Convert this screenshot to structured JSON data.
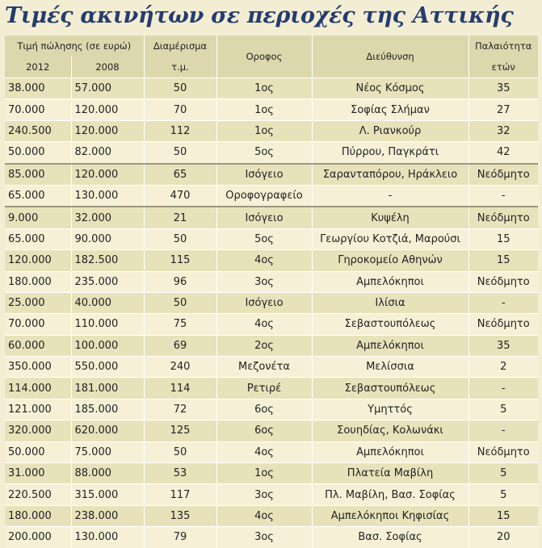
{
  "title": "Τιμές ακινήτων σε περιοχές της Αττικής",
  "headers": {
    "price": "Τιμή πώλησης (σε ευρώ)",
    "y2012": "2012",
    "y2008": "2008",
    "apartment": "Διαμέρισμα",
    "apartment_unit": "τ.μ.",
    "floor": "Οροφος",
    "address": "Διεύθυνση",
    "age": "Παλαιότητα",
    "age_unit": "ετών"
  },
  "rows": [
    [
      "38.000",
      "57.000",
      "50",
      "1ος",
      "Νέος Κόσμος",
      "35"
    ],
    [
      "70.000",
      "120.000",
      "70",
      "1ος",
      "Σοφίας Σλήμαν",
      "27"
    ],
    [
      "240.500",
      "120.000",
      "112",
      "1ος",
      "Λ. Ριανκούρ",
      "32"
    ],
    [
      "50.000",
      "82.000",
      "50",
      "5ος",
      "Πύρρου, Παγκράτι",
      "42"
    ],
    [
      "85.000",
      "120.000",
      "65",
      "Ισόγειο",
      "Σαρανταπόρου, Ηράκλειο",
      "Νεόδμητο"
    ],
    [
      "65.000",
      "130.000",
      "470",
      "Οροφογραφείο",
      "-",
      "-"
    ],
    [
      "9.000",
      "32.000",
      "21",
      "Ισόγειο",
      "Κυψέλη",
      "Νεόδμητο"
    ],
    [
      "65.000",
      "90.000",
      "50",
      "5ος",
      "Γεωργίου Κοτζιά, Μαρούσι",
      "15"
    ],
    [
      "120.000",
      "182.500",
      "115",
      "4ος",
      "Γηροκομείο Αθηνών",
      "15"
    ],
    [
      "180.000",
      "235.000",
      "96",
      "3ος",
      "Αμπελόκηποι",
      "Νεόδμητο"
    ],
    [
      "25.000",
      "40.000",
      "50",
      "Ισόγειο",
      "Ιλίσια",
      "-"
    ],
    [
      "70.000",
      "110.000",
      "75",
      "4ος",
      "Σεβαστουπόλεως",
      "Νεόδμητο"
    ],
    [
      "60.000",
      "100.000",
      "69",
      "2ος",
      "Αμπελόκηποι",
      "35"
    ],
    [
      "350.000",
      "550.000",
      "240",
      "Μεζονέτα",
      "Μελίσσια",
      "2"
    ],
    [
      "114.000",
      "181.000",
      "114",
      "Ρετιρέ",
      "Σεβαστουπόλεως",
      "-"
    ],
    [
      "121.000",
      "185.000",
      "72",
      "6ος",
      "Υμηττός",
      "5"
    ],
    [
      "320.000",
      "620.000",
      "125",
      "6ος",
      "Σουηδίας, Κολωνάκι",
      "-"
    ],
    [
      "50.000",
      "75.000",
      "50",
      "4ος",
      "Αμπελόκηποι",
      "Νεόδμητο"
    ],
    [
      "31.000",
      "88.000",
      "53",
      "1ος",
      "Πλατεία Μαβίλη",
      "5"
    ],
    [
      "220.500",
      "315.000",
      "117",
      "3ος",
      "Πλ. Μαβίλη, Βασ. Σοφίας",
      "5"
    ],
    [
      "180.000",
      "238.000",
      "135",
      "4ος",
      "Αμπελόκηποι Κηφισίας",
      "15"
    ],
    [
      "200.000",
      "130.000",
      "79",
      "3ος",
      "Βασ. Σοφίας",
      "20"
    ]
  ],
  "colors": {
    "title": "#243c6e",
    "header_bg": "#ddd7ad",
    "row_odd": "#e8e2bb",
    "row_even": "#f6f1d6"
  }
}
